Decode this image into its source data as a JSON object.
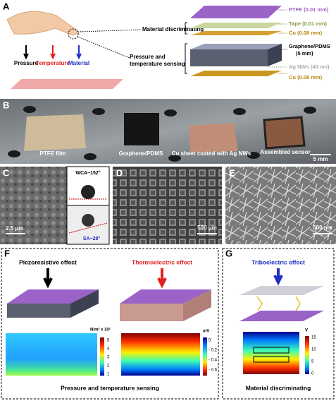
{
  "panels": {
    "a": {
      "letter": "A",
      "forces": [
        "Pressure",
        "Temperature",
        "Material"
      ],
      "material_label": "Material discriminating",
      "sensing_label": "Pressure and temperature sensing",
      "layers": [
        "PTFE (0.01 mm)",
        "Tape (0.01 mm)",
        "Cu (0.08 mm)",
        "Graphene/PDMS",
        "(5 mm)",
        "Ag NWs (40 nm)",
        "Cu (0.08 mm)"
      ]
    },
    "b": {
      "letter": "B",
      "items": [
        "PTFE film",
        "Graphene/PDMS",
        "Cu sheet  coated with Ag NWs",
        "Assembled sensor"
      ],
      "scale": "5 mm"
    },
    "c": {
      "letter": "C",
      "wca": "WCA~152°",
      "sa": "SA~28°",
      "scale": "2.5 μm"
    },
    "d": {
      "letter": "D",
      "scale": "500 μm"
    },
    "e": {
      "letter": "E",
      "scale": "500 nm"
    },
    "f": {
      "letter": "F",
      "left_title": "Piezoresistive effect",
      "right_title": "Thermoelectric effect",
      "left_unit": "N/m² x 10²",
      "left_ticks": [
        "5",
        "4",
        "3",
        "2",
        "1"
      ],
      "right_unit": "mV",
      "right_ticks": [
        "0",
        "- 0.2",
        "- 0.4",
        "- 0.6"
      ],
      "caption": "Pressure and temperature sensing"
    },
    "g": {
      "letter": "G",
      "title": "Triboelectric effect",
      "unit": "V",
      "ticks": [
        "15",
        "10",
        "5",
        "0"
      ],
      "caption": "Material discriminating"
    }
  }
}
